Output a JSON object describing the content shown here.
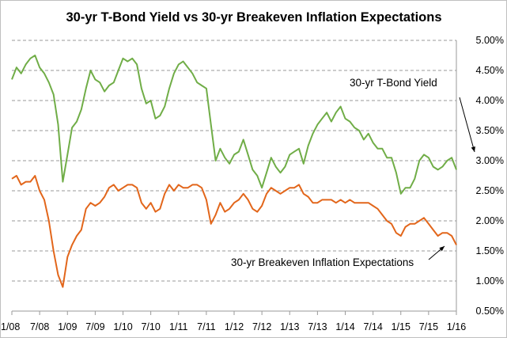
{
  "chart_data": {
    "type": "line",
    "title": "30-yr T-Bond Yield vs 30-yr Breakeven Inflation Expectations",
    "xlabel": "",
    "ylabel": "",
    "x_ticks": [
      "1/08",
      "7/08",
      "1/09",
      "7/09",
      "1/10",
      "7/10",
      "1/11",
      "7/11",
      "1/12",
      "7/12",
      "1/13",
      "7/13",
      "1/14",
      "7/14",
      "1/15",
      "7/15",
      "1/16"
    ],
    "y_ticks": [
      "0.50%",
      "1.00%",
      "1.50%",
      "2.00%",
      "2.50%",
      "3.00%",
      "3.50%",
      "4.00%",
      "4.50%",
      "5.00%"
    ],
    "ylim": [
      0.5,
      5.0
    ],
    "y_axis_position": "right",
    "grid": "horizontal dashed",
    "legend": "none",
    "series": [
      {
        "name": "30-yr T-Bond Yield",
        "color": "#70ad47",
        "x": [
          "2008-01",
          "2008-02",
          "2008-03",
          "2008-04",
          "2008-05",
          "2008-06",
          "2008-07",
          "2008-08",
          "2008-09",
          "2008-10",
          "2008-11",
          "2008-12",
          "2009-01",
          "2009-02",
          "2009-03",
          "2009-04",
          "2009-05",
          "2009-06",
          "2009-07",
          "2009-08",
          "2009-09",
          "2009-10",
          "2009-11",
          "2009-12",
          "2010-01",
          "2010-02",
          "2010-03",
          "2010-04",
          "2010-05",
          "2010-06",
          "2010-07",
          "2010-08",
          "2010-09",
          "2010-10",
          "2010-11",
          "2010-12",
          "2011-01",
          "2011-02",
          "2011-03",
          "2011-04",
          "2011-05",
          "2011-06",
          "2011-07",
          "2011-08",
          "2011-09",
          "2011-10",
          "2011-11",
          "2011-12",
          "2012-01",
          "2012-02",
          "2012-03",
          "2012-04",
          "2012-05",
          "2012-06",
          "2012-07",
          "2012-08",
          "2012-09",
          "2012-10",
          "2012-11",
          "2012-12",
          "2013-01",
          "2013-02",
          "2013-03",
          "2013-04",
          "2013-05",
          "2013-06",
          "2013-07",
          "2013-08",
          "2013-09",
          "2013-10",
          "2013-11",
          "2013-12",
          "2014-01",
          "2014-02",
          "2014-03",
          "2014-04",
          "2014-05",
          "2014-06",
          "2014-07",
          "2014-08",
          "2014-09",
          "2014-10",
          "2014-11",
          "2014-12",
          "2015-01",
          "2015-02",
          "2015-03",
          "2015-04",
          "2015-05",
          "2015-06",
          "2015-07",
          "2015-08",
          "2015-09",
          "2015-10",
          "2015-11",
          "2015-12",
          "2016-01"
        ],
        "values": [
          4.35,
          4.55,
          4.45,
          4.6,
          4.7,
          4.75,
          4.55,
          4.45,
          4.3,
          4.1,
          3.6,
          2.65,
          3.1,
          3.55,
          3.65,
          3.85,
          4.2,
          4.5,
          4.35,
          4.3,
          4.15,
          4.25,
          4.3,
          4.5,
          4.7,
          4.65,
          4.7,
          4.6,
          4.2,
          3.95,
          4.0,
          3.7,
          3.75,
          3.9,
          4.2,
          4.45,
          4.6,
          4.65,
          4.55,
          4.45,
          4.3,
          4.25,
          4.2,
          3.6,
          3.0,
          3.2,
          3.05,
          2.95,
          3.1,
          3.15,
          3.35,
          3.1,
          2.85,
          2.75,
          2.55,
          2.8,
          3.05,
          2.9,
          2.8,
          2.9,
          3.1,
          3.15,
          3.2,
          2.95,
          3.25,
          3.45,
          3.6,
          3.7,
          3.8,
          3.65,
          3.8,
          3.9,
          3.7,
          3.65,
          3.55,
          3.5,
          3.35,
          3.45,
          3.3,
          3.2,
          3.2,
          3.05,
          3.05,
          2.8,
          2.45,
          2.55,
          2.55,
          2.7,
          3.0,
          3.1,
          3.05,
          2.9,
          2.85,
          2.9,
          3.0,
          3.05,
          2.85
        ]
      },
      {
        "name": "30-yr Breakeven Inflation Expectations",
        "color": "#e2661b",
        "x": [
          "2008-01",
          "2008-02",
          "2008-03",
          "2008-04",
          "2008-05",
          "2008-06",
          "2008-07",
          "2008-08",
          "2008-09",
          "2008-10",
          "2008-11",
          "2008-12",
          "2009-01",
          "2009-02",
          "2009-03",
          "2009-04",
          "2009-05",
          "2009-06",
          "2009-07",
          "2009-08",
          "2009-09",
          "2009-10",
          "2009-11",
          "2009-12",
          "2010-01",
          "2010-02",
          "2010-03",
          "2010-04",
          "2010-05",
          "2010-06",
          "2010-07",
          "2010-08",
          "2010-09",
          "2010-10",
          "2010-11",
          "2010-12",
          "2011-01",
          "2011-02",
          "2011-03",
          "2011-04",
          "2011-05",
          "2011-06",
          "2011-07",
          "2011-08",
          "2011-09",
          "2011-10",
          "2011-11",
          "2011-12",
          "2012-01",
          "2012-02",
          "2012-03",
          "2012-04",
          "2012-05",
          "2012-06",
          "2012-07",
          "2012-08",
          "2012-09",
          "2012-10",
          "2012-11",
          "2012-12",
          "2013-01",
          "2013-02",
          "2013-03",
          "2013-04",
          "2013-05",
          "2013-06",
          "2013-07",
          "2013-08",
          "2013-09",
          "2013-10",
          "2013-11",
          "2013-12",
          "2014-01",
          "2014-02",
          "2014-03",
          "2014-04",
          "2014-05",
          "2014-06",
          "2014-07",
          "2014-08",
          "2014-09",
          "2014-10",
          "2014-11",
          "2014-12",
          "2015-01",
          "2015-02",
          "2015-03",
          "2015-04",
          "2015-05",
          "2015-06",
          "2015-07",
          "2015-08",
          "2015-09",
          "2015-10",
          "2015-11",
          "2015-12",
          "2016-01"
        ],
        "values": [
          2.7,
          2.75,
          2.6,
          2.65,
          2.65,
          2.75,
          2.5,
          2.35,
          2.0,
          1.5,
          1.1,
          0.9,
          1.4,
          1.6,
          1.75,
          1.85,
          2.2,
          2.3,
          2.25,
          2.3,
          2.4,
          2.55,
          2.6,
          2.5,
          2.55,
          2.6,
          2.6,
          2.55,
          2.3,
          2.2,
          2.3,
          2.15,
          2.2,
          2.45,
          2.6,
          2.5,
          2.6,
          2.55,
          2.55,
          2.6,
          2.6,
          2.55,
          2.35,
          1.95,
          2.1,
          2.3,
          2.15,
          2.2,
          2.3,
          2.35,
          2.45,
          2.35,
          2.2,
          2.15,
          2.25,
          2.45,
          2.55,
          2.5,
          2.45,
          2.5,
          2.55,
          2.55,
          2.6,
          2.45,
          2.4,
          2.3,
          2.3,
          2.35,
          2.35,
          2.35,
          2.3,
          2.35,
          2.3,
          2.35,
          2.3,
          2.3,
          2.3,
          2.3,
          2.25,
          2.2,
          2.1,
          2.0,
          1.95,
          1.8,
          1.75,
          1.9,
          1.95,
          1.95,
          2.0,
          2.05,
          1.95,
          1.85,
          1.75,
          1.8,
          1.8,
          1.75,
          1.6
        ]
      }
    ],
    "annotations": [
      {
        "text": "30-yr T-Bond Yield",
        "target_series": 0
      },
      {
        "text": "30-yr Breakeven Inflation Expectations",
        "target_series": 1
      }
    ]
  }
}
